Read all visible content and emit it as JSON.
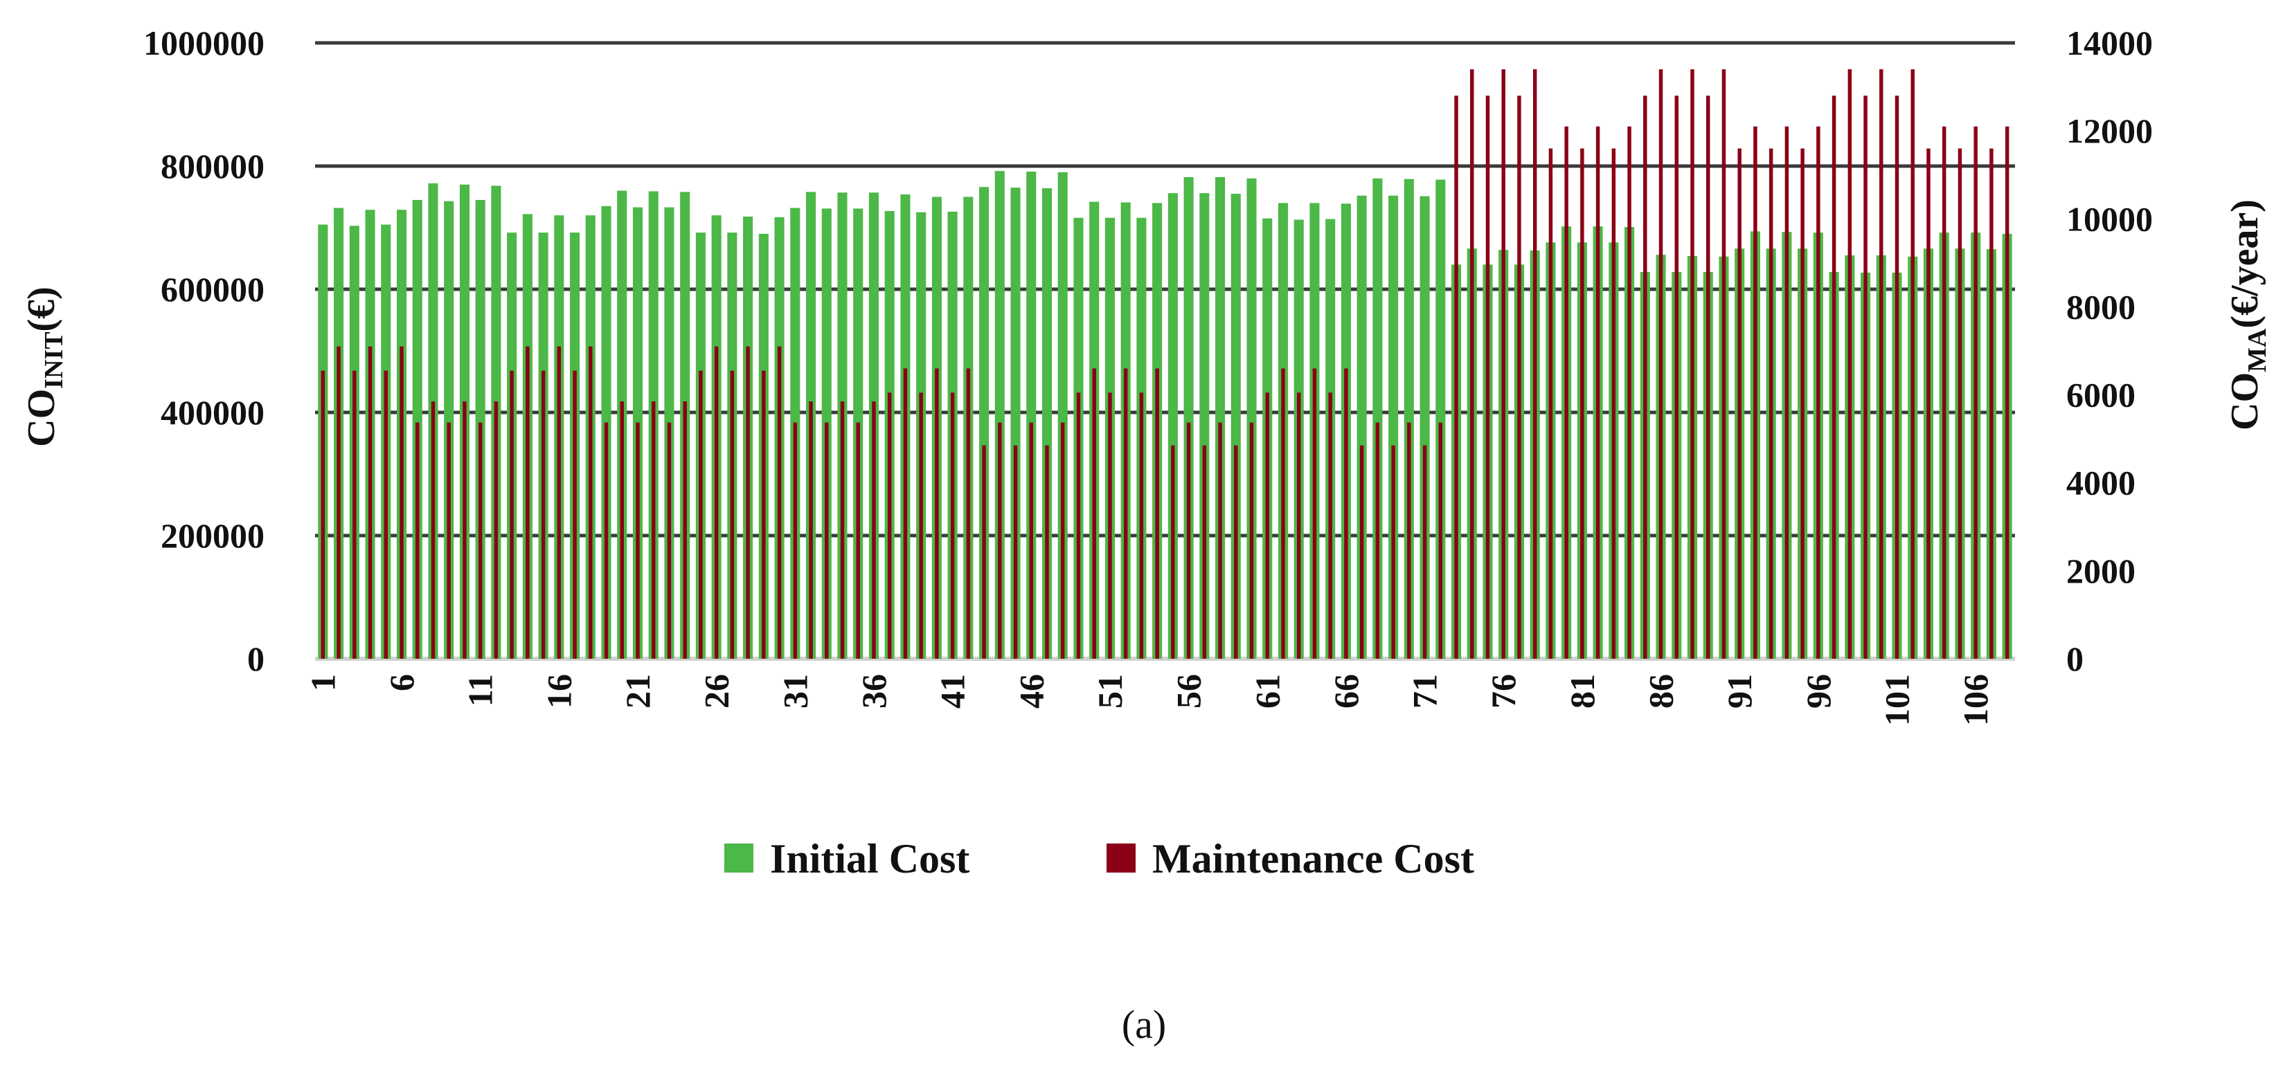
{
  "chart_data": {
    "type": "bar",
    "x": [
      1,
      2,
      3,
      4,
      5,
      6,
      7,
      8,
      9,
      10,
      11,
      12,
      13,
      14,
      15,
      16,
      17,
      18,
      19,
      20,
      21,
      22,
      23,
      24,
      25,
      26,
      27,
      28,
      29,
      30,
      31,
      32,
      33,
      34,
      35,
      36,
      37,
      38,
      39,
      40,
      41,
      42,
      43,
      44,
      45,
      46,
      47,
      48,
      49,
      50,
      51,
      52,
      53,
      54,
      55,
      56,
      57,
      58,
      59,
      60,
      61,
      62,
      63,
      64,
      65,
      66,
      67,
      68,
      69,
      70,
      71,
      72,
      73,
      74,
      75,
      76,
      77,
      78,
      79,
      80,
      81,
      82,
      83,
      84,
      85,
      86,
      87,
      88,
      89,
      90,
      91,
      92,
      93,
      94,
      95,
      96,
      97,
      98,
      99,
      100,
      101,
      102,
      103,
      104,
      105,
      106,
      107,
      108
    ],
    "x_tick_labels": [
      "1",
      "6",
      "11",
      "16",
      "21",
      "26",
      "31",
      "36",
      "41",
      "46",
      "51",
      "56",
      "61",
      "66",
      "71",
      "76",
      "81",
      "86",
      "91",
      "96",
      "101",
      "106"
    ],
    "x_tick_values": [
      1,
      6,
      11,
      16,
      21,
      26,
      31,
      36,
      41,
      46,
      51,
      56,
      61,
      66,
      71,
      76,
      81,
      86,
      91,
      96,
      101,
      106
    ],
    "series": [
      {
        "name": "Initial Cost",
        "axis": "left",
        "color": "#4CB847",
        "values": [
          705000,
          732000,
          703000,
          729000,
          705000,
          729000,
          745000,
          772000,
          743000,
          770000,
          745000,
          768000,
          692000,
          722000,
          692000,
          720000,
          692000,
          720000,
          735000,
          760000,
          733000,
          759000,
          733000,
          758000,
          692000,
          720000,
          692000,
          718000,
          690000,
          717000,
          732000,
          758000,
          731000,
          757000,
          731000,
          757000,
          727000,
          754000,
          725000,
          750000,
          726000,
          750000,
          766000,
          792000,
          765000,
          791000,
          764000,
          790000,
          716000,
          742000,
          716000,
          741000,
          716000,
          740000,
          756000,
          782000,
          756000,
          782000,
          755000,
          780000,
          715000,
          740000,
          713000,
          740000,
          714000,
          739000,
          752000,
          780000,
          752000,
          779000,
          751000,
          778000,
          640000,
          666000,
          640000,
          664000,
          640000,
          663000,
          676000,
          702000,
          676000,
          702000,
          676000,
          701000,
          628000,
          656000,
          628000,
          654000,
          628000,
          653000,
          666000,
          694000,
          666000,
          693000,
          666000,
          692000,
          628000,
          655000,
          627000,
          655000,
          627000,
          653000,
          666000,
          692000,
          666000,
          692000,
          665000,
          690000
        ]
      },
      {
        "name": "Maintenance Cost",
        "axis": "right",
        "color": "#8B0016",
        "values": [
          6550,
          7100,
          6550,
          7100,
          6550,
          7100,
          5370,
          5850,
          5370,
          5850,
          5370,
          5850,
          6550,
          7100,
          6550,
          7100,
          6550,
          7100,
          5370,
          5850,
          5370,
          5850,
          5370,
          5850,
          6550,
          7100,
          6550,
          7100,
          6550,
          7100,
          5370,
          5850,
          5370,
          5850,
          5370,
          5850,
          6050,
          6600,
          6050,
          6600,
          6050,
          6600,
          4850,
          5370,
          4850,
          5370,
          4850,
          5370,
          6050,
          6600,
          6050,
          6600,
          6050,
          6600,
          4850,
          5370,
          4850,
          5370,
          4850,
          5370,
          6050,
          6600,
          6050,
          6600,
          6050,
          6600,
          4850,
          5370,
          4850,
          5370,
          4850,
          5370,
          12800,
          13400,
          12800,
          13400,
          12800,
          13400,
          11600,
          12100,
          11600,
          12100,
          11600,
          12100,
          12800,
          13400,
          12800,
          13400,
          12800,
          13400,
          11600,
          12100,
          11600,
          12100,
          11600,
          12100,
          12800,
          13400,
          12800,
          13400,
          12800,
          13400,
          11600,
          12100,
          11600,
          12100,
          11600,
          12100
        ]
      }
    ],
    "left_axis": {
      "ylim": [
        0,
        1000000
      ],
      "ticks": [
        "0",
        "200000",
        "400000",
        "600000",
        "800000",
        "1000000"
      ],
      "tick_values": [
        0,
        200000,
        400000,
        600000,
        800000,
        1000000
      ]
    },
    "right_axis": {
      "ylim": [
        0,
        14000
      ],
      "ticks": [
        "0",
        "2000",
        "4000",
        "6000",
        "8000",
        "10000",
        "12000",
        "14000"
      ],
      "tick_values": [
        0,
        2000,
        4000,
        6000,
        8000,
        10000,
        12000,
        14000
      ]
    },
    "ylabel_left": {
      "main": "CO",
      "sub": "INIT",
      "rest": "(€)"
    },
    "ylabel_right": {
      "main": "CO",
      "sub": "MA",
      "rest": "(€/year)"
    },
    "legend": {
      "placement": "bottom",
      "entries": [
        "Initial Cost",
        "Maintenance Cost"
      ]
    },
    "grid": true,
    "caption": "(a)"
  }
}
